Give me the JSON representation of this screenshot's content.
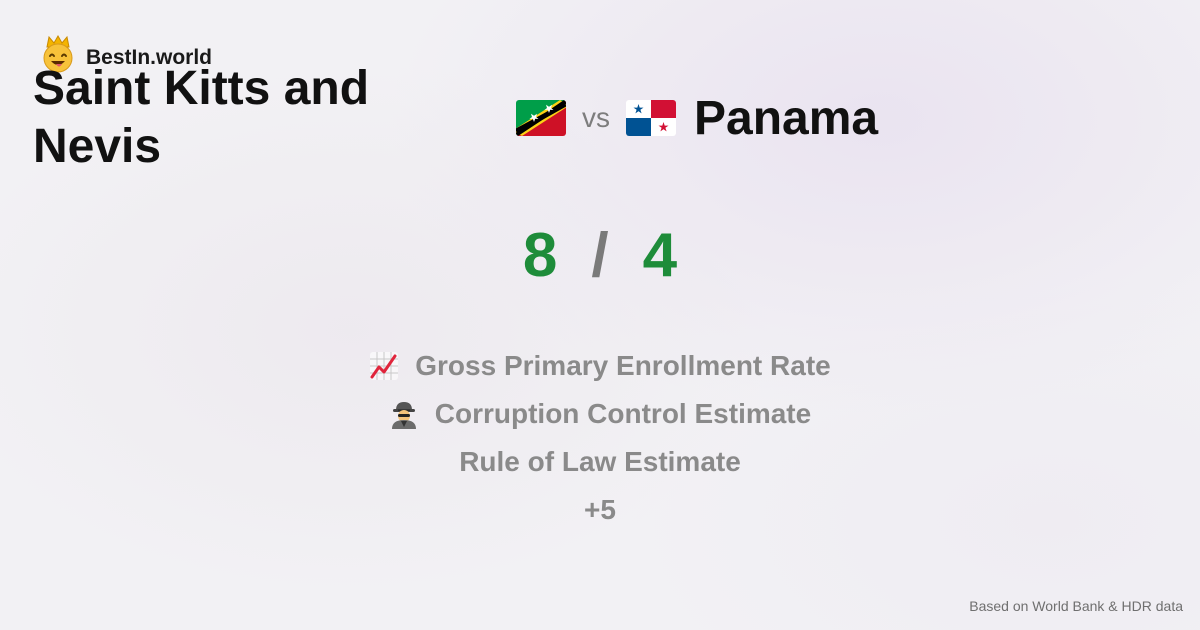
{
  "brand": {
    "name": "BestIn.world",
    "icon": "crowned-smiley-icon"
  },
  "comparison": {
    "left": {
      "name": "Saint Kitts and Nevis",
      "flag": "saint-kitts-and-nevis-flag-icon"
    },
    "vs_label": "vs",
    "right": {
      "name": "Panama",
      "flag": "panama-flag-icon"
    }
  },
  "score": {
    "left": "8",
    "separator": "/",
    "right": "4"
  },
  "metrics": [
    {
      "label": "Gross Primary Enrollment Rate",
      "icon": "chart-increasing-icon"
    },
    {
      "label": "Corruption Control Estimate",
      "icon": "detective-icon"
    },
    {
      "label": "Rule of Law Estimate",
      "icon": ""
    }
  ],
  "more_label": "+5",
  "footer": "Based on World Bank & HDR data",
  "colors": {
    "score": "#1e8c3a",
    "muted": "#8a8a8a",
    "background": "#f2f1f4"
  }
}
